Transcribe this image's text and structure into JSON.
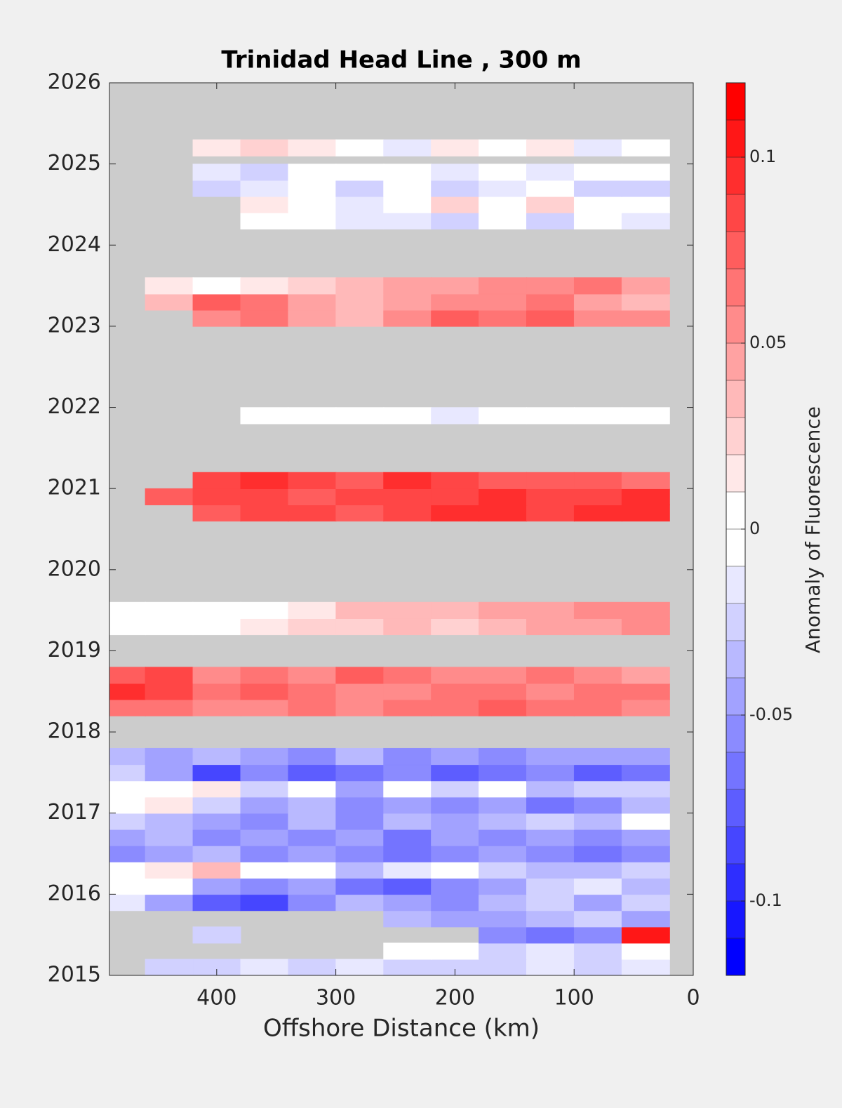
{
  "chart_data": {
    "type": "contourf",
    "title": "Trinidad Head Line , 300 m",
    "xlabel": "Offshore Distance (km)",
    "colorbar_label": "Anomaly of Fluorescence",
    "xlim": [
      490,
      0
    ],
    "xticks": [
      400,
      300,
      200,
      100,
      0
    ],
    "ylim": [
      2015,
      2026
    ],
    "yticks": [
      2015,
      2016,
      2017,
      2018,
      2019,
      2020,
      2021,
      2022,
      2023,
      2024,
      2025,
      2026
    ],
    "clim": [
      -0.12,
      0.12
    ],
    "cticks": [
      -0.1,
      -0.05,
      0,
      0.05,
      0.1
    ],
    "levels": 24,
    "colors": [
      "#0000ff",
      "#ffffff",
      "#ff0000"
    ],
    "background": "#cccccc",
    "x": [
      480,
      440,
      400,
      360,
      320,
      280,
      240,
      200,
      160,
      120,
      80,
      40
    ],
    "y": [
      2015.1,
      2015.3,
      2015.5,
      2015.7,
      2015.9,
      2016.1,
      2016.3,
      2016.5,
      2016.7,
      2016.9,
      2017.1,
      2017.3,
      2017.5,
      2017.7,
      2018.3,
      2018.5,
      2018.7,
      2019.3,
      2019.5,
      2020.7,
      2020.9,
      2021.1,
      2021.9,
      2023.1,
      2023.3,
      2023.5,
      2024.3,
      2024.5,
      2024.7,
      2024.9,
      2025.2
    ],
    "z": [
      [
        null,
        -0.03,
        -0.03,
        -0.02,
        -0.03,
        -0.02,
        -0.03,
        -0.03,
        -0.03,
        -0.02,
        -0.03,
        -0.02
      ],
      [
        null,
        null,
        null,
        null,
        null,
        null,
        -0.01,
        0,
        -0.03,
        -0.02,
        -0.03,
        -0.01
      ],
      [
        null,
        null,
        -0.03,
        null,
        null,
        null,
        null,
        null,
        -0.06,
        -0.07,
        -0.06,
        0.1
      ],
      [
        null,
        null,
        null,
        null,
        null,
        null,
        -0.04,
        -0.05,
        -0.05,
        -0.04,
        -0.03,
        -0.05
      ],
      [
        -0.02,
        -0.05,
        -0.08,
        -0.09,
        -0.06,
        -0.04,
        -0.05,
        -0.06,
        -0.04,
        -0.03,
        -0.05,
        -0.03
      ],
      [
        0,
        -0.01,
        -0.05,
        -0.06,
        -0.05,
        -0.07,
        -0.08,
        -0.06,
        -0.05,
        -0.03,
        -0.02,
        -0.04
      ],
      [
        0,
        0.01,
        0.03,
        -0.01,
        0,
        -0.04,
        -0.02,
        -0.01,
        -0.03,
        -0.04,
        -0.04,
        -0.03
      ],
      [
        -0.06,
        -0.05,
        -0.04,
        -0.06,
        -0.05,
        -0.06,
        -0.07,
        -0.06,
        -0.05,
        -0.06,
        -0.07,
        -0.06
      ],
      [
        -0.05,
        -0.04,
        -0.06,
        -0.05,
        -0.06,
        -0.05,
        -0.07,
        -0.05,
        -0.06,
        -0.05,
        -0.06,
        -0.05
      ],
      [
        -0.03,
        -0.04,
        -0.05,
        -0.06,
        -0.04,
        -0.06,
        -0.04,
        -0.05,
        -0.04,
        -0.03,
        -0.04,
        -0.01
      ],
      [
        0,
        0.01,
        -0.03,
        -0.05,
        -0.04,
        -0.06,
        -0.05,
        -0.06,
        -0.05,
        -0.07,
        -0.06,
        -0.04
      ],
      [
        0,
        -0.01,
        0.01,
        -0.03,
        -0.01,
        -0.05,
        0,
        -0.03,
        0,
        -0.04,
        -0.03,
        -0.03
      ],
      [
        -0.03,
        -0.05,
        -0.09,
        -0.06,
        -0.08,
        -0.07,
        -0.06,
        -0.08,
        -0.07,
        -0.06,
        -0.08,
        -0.07
      ],
      [
        -0.04,
        -0.05,
        -0.04,
        -0.05,
        -0.06,
        -0.04,
        -0.06,
        -0.05,
        -0.06,
        -0.05,
        -0.05,
        -0.05
      ],
      [
        0.06,
        0.06,
        0.05,
        0.05,
        0.06,
        0.05,
        0.06,
        0.06,
        0.07,
        0.06,
        0.06,
        0.05
      ],
      [
        0.09,
        0.08,
        0.06,
        0.07,
        0.06,
        0.05,
        0.05,
        0.06,
        0.06,
        0.05,
        0.06,
        0.06
      ],
      [
        0.07,
        0.08,
        0.05,
        0.06,
        0.05,
        0.07,
        0.06,
        0.05,
        0.05,
        0.06,
        0.05,
        0.04
      ],
      [
        0,
        0,
        0,
        0.01,
        0.02,
        0.02,
        0.03,
        0.02,
        0.03,
        0.04,
        0.04,
        0.05
      ],
      [
        0,
        0,
        0,
        0,
        0.01,
        0.03,
        0.03,
        0.03,
        0.04,
        0.04,
        0.05,
        0.05
      ],
      [
        null,
        null,
        0.07,
        0.08,
        0.08,
        0.07,
        0.08,
        0.09,
        0.09,
        0.08,
        0.09,
        0.09
      ],
      [
        null,
        0.07,
        0.08,
        0.08,
        0.07,
        0.08,
        0.08,
        0.08,
        0.09,
        0.08,
        0.08,
        0.09
      ],
      [
        null,
        null,
        0.08,
        0.09,
        0.08,
        0.07,
        0.09,
        0.08,
        0.07,
        0.07,
        0.07,
        0.06
      ],
      [
        null,
        null,
        null,
        -0.01,
        0,
        -0.01,
        0,
        -0.02,
        0,
        -0.01,
        0,
        -0.01
      ],
      [
        null,
        null,
        0.05,
        0.06,
        0.04,
        0.03,
        0.05,
        0.07,
        0.06,
        0.07,
        0.05,
        0.05
      ],
      [
        null,
        0.03,
        0.07,
        0.06,
        0.04,
        0.03,
        0.04,
        0.05,
        0.05,
        0.06,
        0.04,
        0.03
      ],
      [
        null,
        0.01,
        -0.01,
        0.01,
        0.02,
        0.03,
        0.04,
        0.04,
        0.05,
        0.05,
        0.06,
        0.04
      ],
      [
        null,
        null,
        null,
        0,
        -0.01,
        -0.02,
        -0.02,
        -0.03,
        -0.01,
        -0.03,
        -0.01,
        -0.02
      ],
      [
        null,
        null,
        null,
        0.01,
        0,
        -0.02,
        -0.01,
        0.02,
        -0.01,
        0.02,
        -0.01,
        0
      ],
      [
        null,
        null,
        -0.03,
        -0.02,
        0,
        -0.03,
        -0.01,
        -0.03,
        -0.02,
        0,
        -0.03,
        -0.03
      ],
      [
        null,
        null,
        -0.02,
        -0.03,
        -0.01,
        0,
        -0.01,
        -0.02,
        0,
        -0.02,
        -0.01,
        0
      ],
      [
        null,
        null,
        0.01,
        0.02,
        0.01,
        0,
        -0.02,
        0.01,
        0,
        0.01,
        -0.02,
        -0.01
      ]
    ]
  }
}
